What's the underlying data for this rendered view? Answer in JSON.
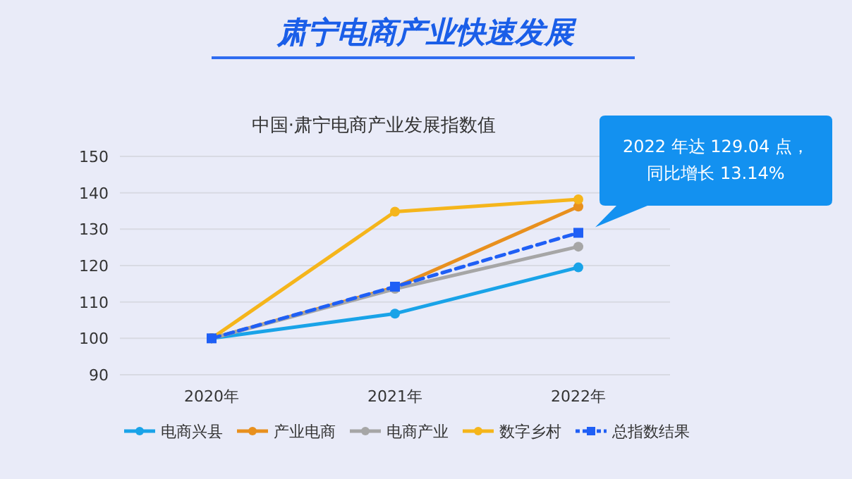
{
  "chart_data": {
    "type": "line",
    "title": "肃宁电商产业快速发展",
    "subtitle": "中国·肃宁电商产业发展指数值",
    "categories": [
      "2020年",
      "2021年",
      "2022年"
    ],
    "series": [
      {
        "name": "电商兴县",
        "color": "#19a3e8",
        "values": [
          100,
          106.8,
          119.5
        ]
      },
      {
        "name": "产业电商",
        "color": "#e8901e",
        "values": [
          100,
          114.0,
          136.2
        ]
      },
      {
        "name": "电商产业",
        "color": "#a6a6a6",
        "values": [
          100,
          113.6,
          125.2
        ]
      },
      {
        "name": "数字乡村",
        "color": "#f5b51b",
        "values": [
          100,
          134.8,
          138.2
        ]
      },
      {
        "name": "总指数结果",
        "color": "#1f5ff5",
        "values": [
          100,
          114.2,
          129.0
        ],
        "marker": "square",
        "line_style": "dashed"
      }
    ],
    "ylim": [
      90,
      150
    ],
    "yticks": [
      90,
      100,
      110,
      120,
      130,
      140,
      150
    ],
    "grid": "y",
    "legend": "bottom",
    "marker": "circle",
    "line_style": "solid",
    "annotations": [
      "2022 年达 129.04 点，",
      "同比增长 13.14%"
    ]
  }
}
